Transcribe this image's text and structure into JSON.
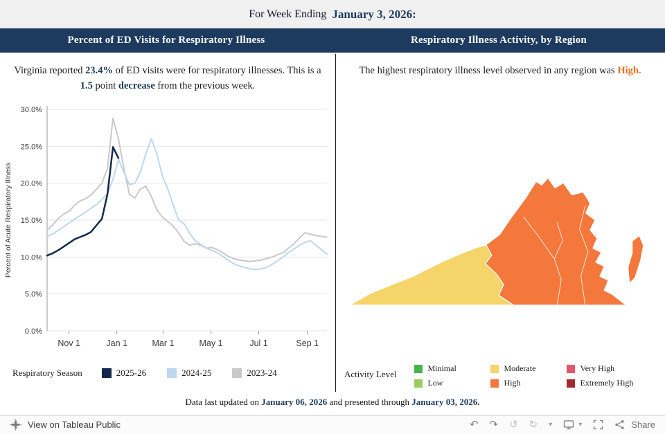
{
  "header": {
    "prefix": "For Week Ending",
    "date": "January 3, 2026:"
  },
  "left_panel": {
    "title": "Percent of ED Visits for Respiratory Illness",
    "annotation": {
      "p1": "Virginia reported",
      "v1": "23.4%",
      "p2": "of ED visits were for respiratory illnesses. This is a",
      "v2": "1.5",
      "p3": "point",
      "v3": "decrease",
      "p4": "from the previous week."
    },
    "season_legend": {
      "label": "Respiratory Season",
      "items": [
        {
          "label": "2025-26",
          "color": "#12294b"
        },
        {
          "label": "2024-25",
          "color": "#bdd7ee"
        },
        {
          "label": "2023-24",
          "color": "#c9c9c9"
        }
      ]
    }
  },
  "right_panel": {
    "title": "Respiratory Illness Activity, by Region",
    "annotation": {
      "p1": "The highest respiratory illness level observed in any region was",
      "v1": "High."
    },
    "activity_legend": {
      "label": "Activity Level",
      "items": [
        {
          "label": "Minimal",
          "color": "#47b649"
        },
        {
          "label": "Low",
          "color": "#99ce5f"
        },
        {
          "label": "Moderate",
          "color": "#f5d469"
        },
        {
          "label": "High",
          "color": "#f4783b"
        },
        {
          "label": "Very High",
          "color": "#e4566b"
        },
        {
          "label": "Extremely High",
          "color": "#a02c2c"
        }
      ]
    },
    "map": {
      "highest_level": "High",
      "regions": [
        {
          "name": "Southwest",
          "level": "Moderate",
          "color": "#f5d469"
        },
        {
          "name": "Northern-Central-Eastern",
          "level": "High",
          "color": "#f4783b"
        },
        {
          "name": "Eastern Shore",
          "level": "High",
          "color": "#f4783b"
        }
      ]
    }
  },
  "chart_data": {
    "type": "line",
    "title": "Percent of ED Visits for Respiratory Illness",
    "xlabel": "",
    "ylabel": "Percent of Acute Respiratory Illness",
    "ylim": [
      0,
      30
    ],
    "weeks": 52,
    "grid": true,
    "legend_position": "bottom",
    "y_ticks": [
      {
        "v": 0,
        "label": "0.0%"
      },
      {
        "v": 5,
        "label": "5.0%"
      },
      {
        "v": 10,
        "label": "10.0%"
      },
      {
        "v": 15,
        "label": "15.0%"
      },
      {
        "v": 20,
        "label": "20.0%"
      },
      {
        "v": 25,
        "label": "25.0%"
      },
      {
        "v": 30,
        "label": "30.0%"
      }
    ],
    "x_ticks": [
      {
        "label": "Nov 1",
        "week": 4
      },
      {
        "label": "Jan 1",
        "week": 12.71
      },
      {
        "label": "Mar 1",
        "week": 21.14
      },
      {
        "label": "May 1",
        "week": 29.86
      },
      {
        "label": "Jul 1",
        "week": 38.57
      },
      {
        "label": "Sep 1",
        "week": 47.43
      }
    ],
    "series": [
      {
        "name": "2023-24",
        "color": "#c9c9c9",
        "width": 2,
        "values": [
          13.6,
          14.3,
          15.2,
          15.8,
          16.2,
          17.0,
          17.6,
          17.9,
          18.4,
          19.2,
          20.0,
          22.0,
          28.8,
          26.0,
          22.0,
          18.5,
          18.0,
          19.2,
          19.6,
          18.2,
          16.4,
          15.4,
          14.8,
          14.2,
          13.2,
          12.1,
          11.6,
          11.8,
          11.6,
          11.2,
          11.3,
          11.0,
          10.6,
          10.1,
          9.8,
          9.6,
          9.5,
          9.4,
          9.5,
          9.6,
          9.8,
          10.0,
          10.3,
          10.6,
          11.2,
          11.8,
          12.6,
          13.3,
          13.1,
          12.9,
          12.8,
          12.7
        ]
      },
      {
        "name": "2024-25",
        "color": "#bdd7ee",
        "width": 2,
        "values": [
          12.8,
          13.1,
          13.6,
          14.1,
          14.6,
          15.1,
          15.6,
          16.1,
          16.6,
          17.1,
          17.8,
          18.6,
          20.5,
          23.2,
          21.5,
          19.8,
          20.0,
          21.5,
          24.0,
          26.0,
          24.0,
          21.0,
          19.2,
          17.0,
          15.0,
          14.5,
          13.2,
          12.2,
          11.7,
          11.2,
          10.9,
          10.6,
          10.1,
          9.6,
          9.1,
          8.8,
          8.6,
          8.4,
          8.3,
          8.4,
          8.6,
          9.0,
          9.5,
          10.0,
          10.6,
          11.1,
          11.6,
          12.0,
          12.2,
          11.6,
          11.0,
          10.4
        ]
      },
      {
        "name": "2025-26",
        "color": "#12294b",
        "width": 2.5,
        "values": [
          10.2,
          10.5,
          10.9,
          11.4,
          11.9,
          12.4,
          12.7,
          13.0,
          13.4,
          14.3,
          15.2,
          18.5,
          24.9,
          23.4
        ]
      }
    ],
    "current_value": "23.4%",
    "change_from_previous_week": "-1.5 points"
  },
  "footer": {
    "p1": "Data last updated on",
    "d1": "January 06, 2026",
    "p2": "and presented through",
    "d2": "January 03, 2026."
  },
  "toolbar": {
    "view_label": "View on Tableau Public",
    "share_label": "Share",
    "icons": {
      "undo": "↶",
      "redo": "↷",
      "reset": "↺",
      "refresh": "↻",
      "caret": "▾"
    }
  }
}
